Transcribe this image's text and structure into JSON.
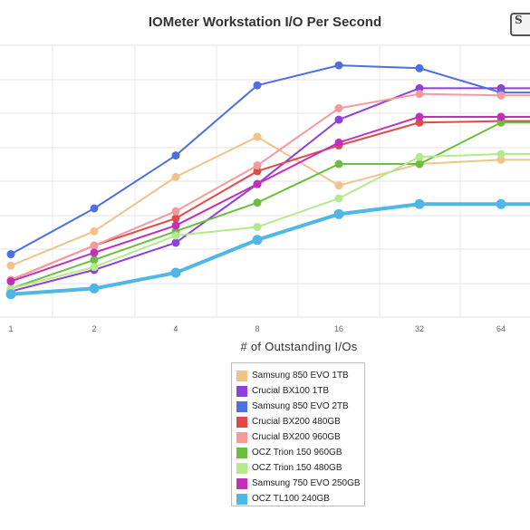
{
  "chart_data": {
    "type": "line",
    "title": "IOMeter Workstation I/O Per Second",
    "xlabel": "# of Outstanding I/Os",
    "ylabel": "",
    "x": [
      "1",
      "2",
      "4",
      "8",
      "16",
      "32",
      "64"
    ],
    "ylim": [
      0,
      19
    ],
    "grid": true,
    "legend_position": "bottom",
    "series": [
      {
        "name": "Samsung 850 EVO 1TB",
        "color": "#efc38b",
        "width": 2,
        "values": [
          3.6,
          6.0,
          9.8,
          12.6,
          9.2,
          10.7,
          11.0
        ]
      },
      {
        "name": "Crucial BX100 1TB",
        "color": "#8e3fe0",
        "width": 2,
        "values": [
          1.8,
          3.3,
          5.2,
          9.3,
          13.8,
          16.0,
          16.0
        ]
      },
      {
        "name": "Samsung 850 EVO 2TB",
        "color": "#4f6fe0",
        "width": 2,
        "values": [
          4.4,
          7.6,
          11.3,
          16.2,
          17.6,
          17.4,
          15.7
        ]
      },
      {
        "name": "Crucial BX200 480GB",
        "color": "#e04a4a",
        "width": 2,
        "values": [
          2.6,
          5.0,
          6.9,
          10.2,
          12.0,
          13.6,
          13.7
        ]
      },
      {
        "name": "Crucial BX200 960GB",
        "color": "#f59a9a",
        "width": 2,
        "values": [
          2.6,
          5.0,
          7.4,
          10.6,
          14.6,
          15.6,
          15.5
        ]
      },
      {
        "name": "OCZ Trion 150 960GB",
        "color": "#6cbf3c",
        "width": 2,
        "values": [
          2.0,
          4.0,
          6.0,
          8.0,
          10.7,
          10.7,
          13.6
        ]
      },
      {
        "name": "OCZ Trion 150 480GB",
        "color": "#b5ea8c",
        "width": 2,
        "values": [
          2.0,
          3.5,
          5.7,
          6.3,
          8.3,
          11.2,
          11.4
        ]
      },
      {
        "name": "Samsung 750 EVO 250GB",
        "color": "#c22fbc",
        "width": 2,
        "values": [
          2.5,
          4.5,
          6.4,
          9.3,
          12.2,
          14.0,
          14.0
        ]
      },
      {
        "name": "OCZ TL100 240GB",
        "color": "#4fb6e6",
        "width": 4,
        "values": [
          1.6,
          2.0,
          3.1,
          5.4,
          7.2,
          7.9,
          7.9
        ]
      }
    ]
  },
  "logo": {
    "text": "S"
  }
}
